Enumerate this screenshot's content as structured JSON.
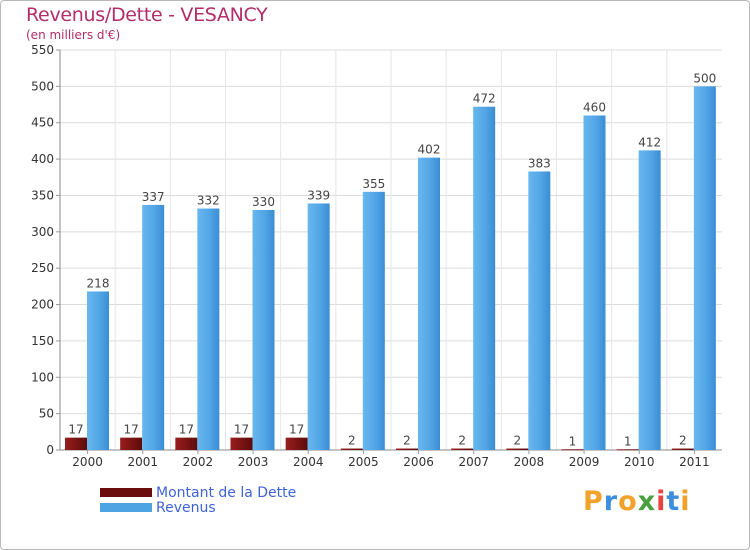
{
  "chart_data": {
    "type": "bar",
    "title": "Revenus/Dette - VESANCY",
    "subtitle": "(en milliers d'€)",
    "categories": [
      "2000",
      "2001",
      "2002",
      "2003",
      "2004",
      "2005",
      "2006",
      "2007",
      "2008",
      "2009",
      "2010",
      "2011"
    ],
    "series": [
      {
        "name": "Montant de la Dette",
        "color": "#7a1010",
        "values": [
          17,
          17,
          17,
          17,
          17,
          2,
          2,
          2,
          2,
          1,
          1,
          2
        ]
      },
      {
        "name": "Revenus",
        "color": "#4ea3e3",
        "values": [
          218,
          337,
          332,
          330,
          339,
          355,
          402,
          472,
          383,
          460,
          412,
          500
        ]
      }
    ],
    "ylim": [
      0,
      550
    ],
    "yticks": [
      0,
      50,
      100,
      150,
      200,
      250,
      300,
      350,
      400,
      450,
      500,
      550
    ],
    "grid": true,
    "legend_position": "bottom-left"
  },
  "legend": {
    "debt_label": "Montant de la Dette",
    "revenue_label": "Revenus",
    "debt_color": "#6b0d0d",
    "revenue_color": "#4ea3e3"
  },
  "logo": {
    "text": "Proxiti",
    "letter_colors": [
      "#f2a22a",
      "#3c8ede",
      "#f2a22a",
      "#4aa03f",
      "#e8433c",
      "#3c8ede",
      "#f2a22a"
    ]
  }
}
